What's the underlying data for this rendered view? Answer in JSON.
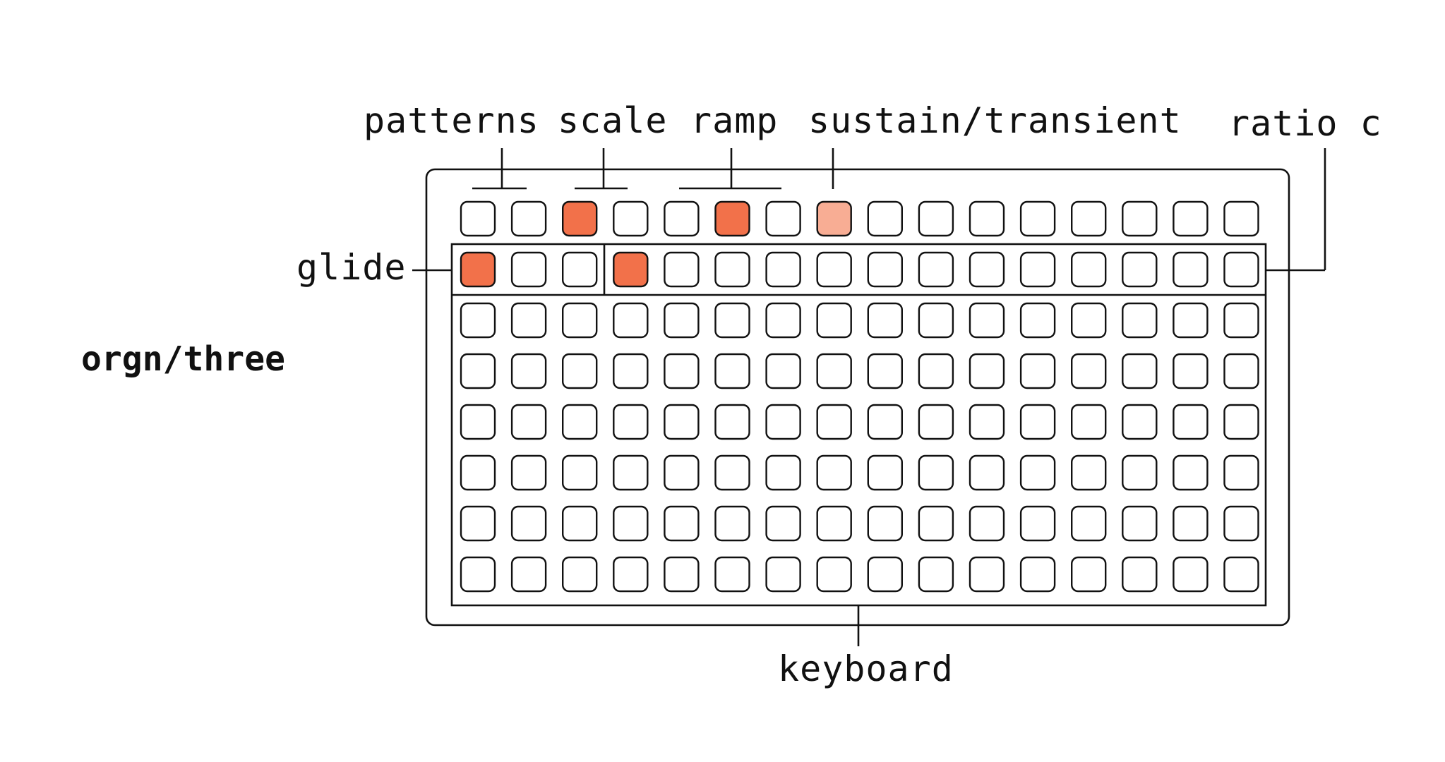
{
  "title": "orgn/three",
  "labels": {
    "patterns": "patterns",
    "scale": "scale",
    "ramp": "ramp",
    "sustain": "sustain/transient",
    "ratio": "ratio c",
    "glide": "glide",
    "keyboard": "keyboard"
  },
  "grid": {
    "columns": 16,
    "rows": 8
  },
  "colors": {
    "off": "#ffffff",
    "on": "#f2714a",
    "dim": "#f8ad94",
    "stroke": "#111111"
  },
  "lit_keys": [
    {
      "row": 1,
      "col": 3,
      "state": "on"
    },
    {
      "row": 1,
      "col": 6,
      "state": "on"
    },
    {
      "row": 1,
      "col": 8,
      "state": "dim"
    },
    {
      "row": 2,
      "col": 1,
      "state": "on"
    },
    {
      "row": 2,
      "col": 4,
      "state": "on"
    }
  ]
}
